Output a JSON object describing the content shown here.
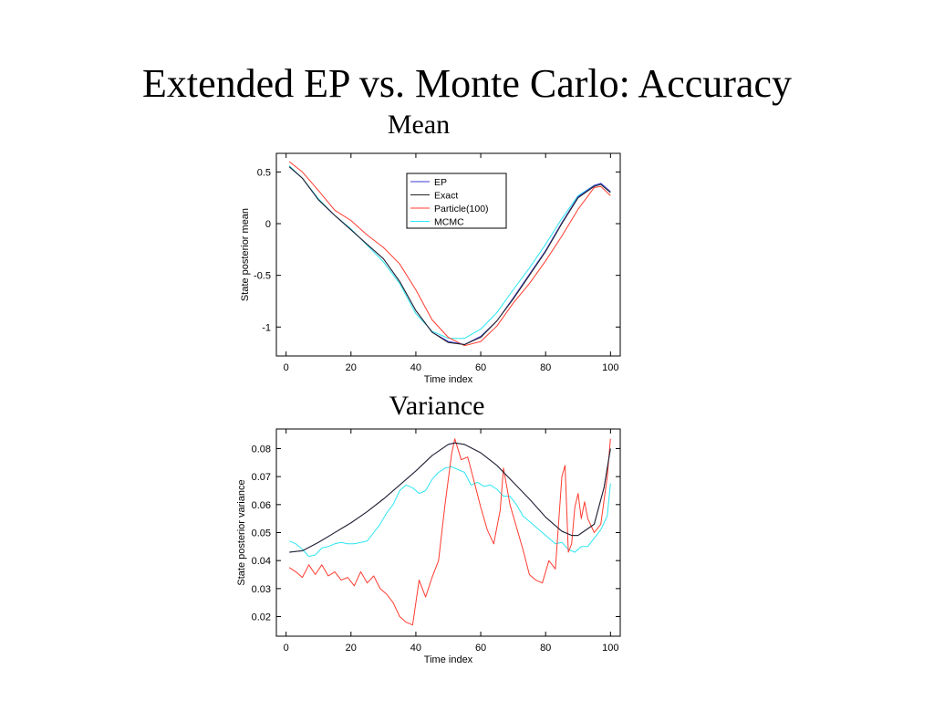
{
  "slide": {
    "title": "Extended  EP vs. Monte Carlo: Accuracy",
    "mean_heading": "Mean",
    "variance_heading": "Variance"
  },
  "colors": {
    "EP": "#3b3bd6",
    "Exact": "#222222",
    "Particle(100)": "#ff3b2f",
    "MCMC": "#2ee6f2"
  },
  "chart_data": [
    {
      "type": "line",
      "title": "Mean",
      "xlabel": "Time index",
      "ylabel": "State posterior mean",
      "xlim": [
        -3,
        103
      ],
      "ylim": [
        -1.28,
        0.68
      ],
      "xticks": [
        0,
        20,
        40,
        60,
        80,
        100
      ],
      "yticks": [
        -1,
        -0.5,
        0,
        0.5
      ],
      "ytick_labels": [
        "-1",
        "-0.5",
        "0",
        "0.5"
      ],
      "grid": false,
      "legend": "top-center",
      "series": [
        {
          "name": "EP",
          "x": [
            1,
            5,
            10,
            15,
            20,
            25,
            30,
            35,
            40,
            45,
            50,
            55,
            60,
            65,
            70,
            75,
            80,
            85,
            90,
            95,
            97,
            100
          ],
          "y": [
            0.55,
            0.44,
            0.23,
            0.08,
            -0.06,
            -0.2,
            -0.34,
            -0.56,
            -0.84,
            -1.05,
            -1.14,
            -1.17,
            -1.09,
            -0.94,
            -0.72,
            -0.49,
            -0.26,
            0.01,
            0.26,
            0.37,
            0.39,
            0.31
          ]
        },
        {
          "name": "Exact",
          "x": [
            1,
            5,
            10,
            15,
            20,
            25,
            30,
            35,
            40,
            45,
            50,
            55,
            60,
            65,
            70,
            75,
            80,
            85,
            90,
            95,
            97,
            100
          ],
          "y": [
            0.55,
            0.44,
            0.23,
            0.08,
            -0.06,
            -0.2,
            -0.34,
            -0.56,
            -0.84,
            -1.05,
            -1.15,
            -1.17,
            -1.1,
            -0.94,
            -0.73,
            -0.5,
            -0.27,
            0.0,
            0.25,
            0.36,
            0.38,
            0.3
          ]
        },
        {
          "name": "Particle(100)",
          "x": [
            1,
            5,
            10,
            15,
            20,
            25,
            30,
            35,
            40,
            45,
            50,
            55,
            60,
            65,
            70,
            75,
            80,
            85,
            90,
            95,
            97,
            100
          ],
          "y": [
            0.6,
            0.5,
            0.32,
            0.13,
            0.03,
            -0.11,
            -0.23,
            -0.39,
            -0.64,
            -0.93,
            -1.1,
            -1.18,
            -1.14,
            -0.99,
            -0.77,
            -0.58,
            -0.36,
            -0.12,
            0.14,
            0.35,
            0.36,
            0.27
          ]
        },
        {
          "name": "MCMC",
          "x": [
            1,
            5,
            10,
            15,
            20,
            25,
            30,
            35,
            40,
            45,
            50,
            55,
            60,
            65,
            70,
            75,
            80,
            85,
            90,
            95,
            97,
            100
          ],
          "y": [
            0.56,
            0.44,
            0.24,
            0.08,
            -0.05,
            -0.21,
            -0.37,
            -0.58,
            -0.87,
            -1.04,
            -1.11,
            -1.11,
            -1.02,
            -0.86,
            -0.64,
            -0.43,
            -0.2,
            0.05,
            0.27,
            0.37,
            0.38,
            0.3
          ]
        }
      ]
    },
    {
      "type": "line",
      "title": "Variance",
      "xlabel": "Time index",
      "ylabel": "State posterior variance",
      "xlim": [
        -3,
        103
      ],
      "ylim": [
        0.013,
        0.087
      ],
      "xticks": [
        0,
        20,
        40,
        60,
        80,
        100
      ],
      "yticks": [
        0.02,
        0.03,
        0.04,
        0.05,
        0.06,
        0.07,
        0.08
      ],
      "ytick_labels": [
        "0.02",
        "0.03",
        "0.04",
        "0.05",
        "0.06",
        "0.07",
        "0.08"
      ],
      "grid": false,
      "legend": "none",
      "series": [
        {
          "name": "EP",
          "x": [
            1,
            5,
            10,
            15,
            20,
            25,
            30,
            35,
            40,
            45,
            50,
            52,
            55,
            60,
            65,
            70,
            75,
            80,
            85,
            88,
            90,
            95,
            98,
            100
          ],
          "y": [
            0.043,
            0.0435,
            0.0465,
            0.05,
            0.0535,
            0.0575,
            0.062,
            0.067,
            0.072,
            0.0775,
            0.0815,
            0.082,
            0.0815,
            0.0785,
            0.074,
            0.068,
            0.062,
            0.0555,
            0.0505,
            0.049,
            0.049,
            0.053,
            0.066,
            0.08
          ]
        },
        {
          "name": "Exact",
          "x": [
            1,
            5,
            10,
            15,
            20,
            25,
            30,
            35,
            40,
            45,
            50,
            52,
            55,
            60,
            65,
            70,
            75,
            80,
            85,
            88,
            90,
            95,
            98,
            100
          ],
          "y": [
            0.043,
            0.0435,
            0.0465,
            0.05,
            0.0535,
            0.0575,
            0.062,
            0.067,
            0.072,
            0.0775,
            0.0815,
            0.082,
            0.0815,
            0.0785,
            0.074,
            0.068,
            0.062,
            0.0555,
            0.0505,
            0.049,
            0.049,
            0.053,
            0.066,
            0.08
          ]
        },
        {
          "name": "Particle(100)",
          "x": [
            1,
            3,
            5,
            7,
            9,
            11,
            13,
            15,
            17,
            19,
            21,
            23,
            25,
            27,
            29,
            31,
            33,
            35,
            37,
            39,
            41,
            43,
            45,
            47,
            49,
            51,
            52,
            54,
            56,
            58,
            60,
            62,
            64,
            66,
            67,
            69,
            71,
            73,
            75,
            77,
            79,
            81,
            83,
            85,
            86,
            87,
            88,
            89,
            90,
            91,
            92,
            93,
            95,
            97,
            99,
            100
          ],
          "y": [
            0.0375,
            0.036,
            0.034,
            0.0385,
            0.035,
            0.0385,
            0.0345,
            0.036,
            0.033,
            0.034,
            0.031,
            0.036,
            0.032,
            0.0345,
            0.03,
            0.028,
            0.025,
            0.02,
            0.018,
            0.017,
            0.033,
            0.027,
            0.034,
            0.04,
            0.06,
            0.078,
            0.0835,
            0.076,
            0.077,
            0.068,
            0.059,
            0.051,
            0.046,
            0.058,
            0.073,
            0.06,
            0.052,
            0.044,
            0.035,
            0.033,
            0.032,
            0.04,
            0.037,
            0.07,
            0.074,
            0.043,
            0.046,
            0.059,
            0.064,
            0.055,
            0.061,
            0.055,
            0.05,
            0.053,
            0.07,
            0.0835
          ]
        },
        {
          "name": "MCMC",
          "x": [
            1,
            3,
            5,
            7,
            9,
            11,
            13,
            15,
            17,
            19,
            21,
            23,
            25,
            27,
            29,
            31,
            33,
            35,
            37,
            39,
            41,
            43,
            45,
            47,
            49,
            51,
            53,
            55,
            57,
            59,
            61,
            63,
            65,
            67,
            69,
            71,
            73,
            75,
            77,
            79,
            81,
            83,
            85,
            87,
            89,
            91,
            93,
            95,
            97,
            99,
            100
          ],
          "y": [
            0.047,
            0.046,
            0.044,
            0.0415,
            0.042,
            0.0445,
            0.045,
            0.046,
            0.0465,
            0.046,
            0.046,
            0.0465,
            0.047,
            0.05,
            0.053,
            0.057,
            0.06,
            0.065,
            0.067,
            0.066,
            0.064,
            0.065,
            0.069,
            0.0715,
            0.073,
            0.0735,
            0.0725,
            0.0715,
            0.067,
            0.068,
            0.0665,
            0.067,
            0.0655,
            0.063,
            0.063,
            0.06,
            0.056,
            0.054,
            0.052,
            0.05,
            0.048,
            0.046,
            0.0465,
            0.044,
            0.043,
            0.045,
            0.045,
            0.048,
            0.051,
            0.056,
            0.0675
          ]
        }
      ]
    }
  ]
}
